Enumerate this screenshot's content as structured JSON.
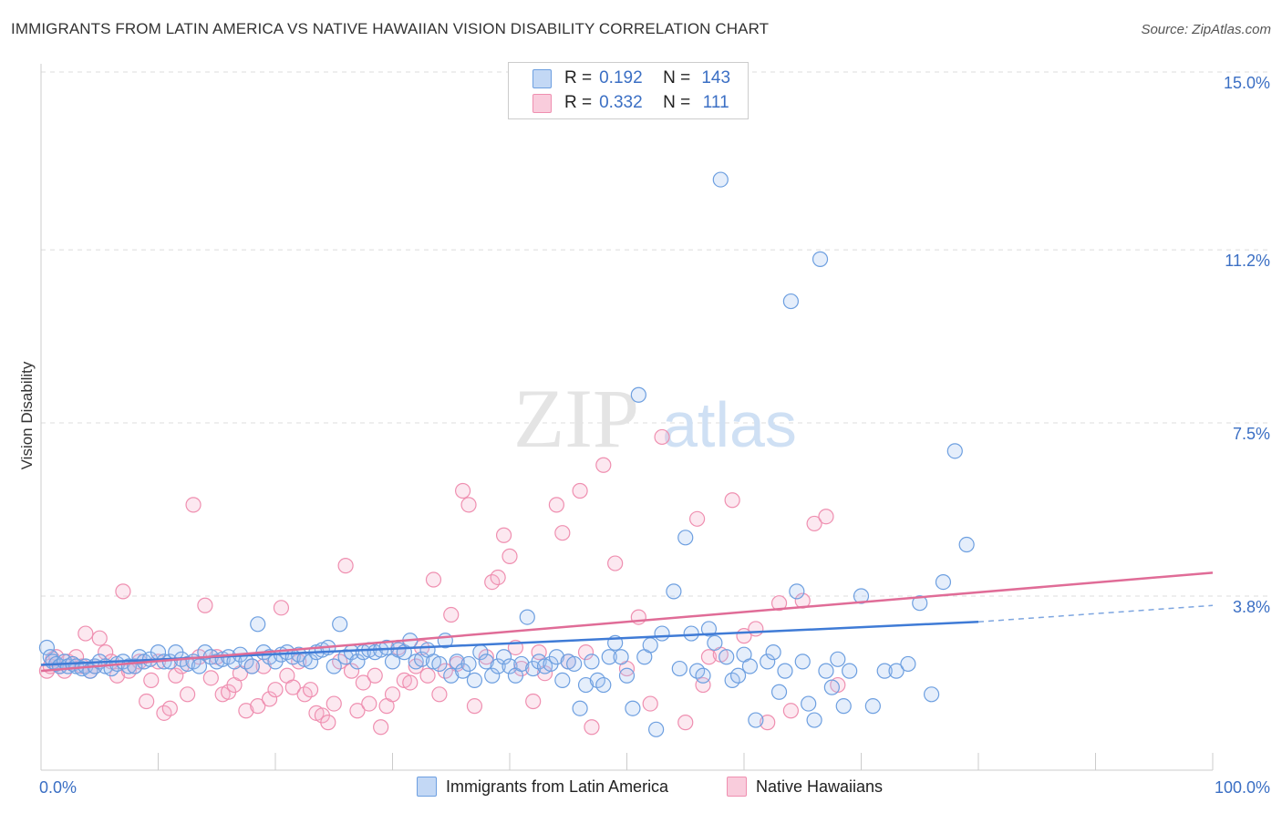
{
  "title": "IMMIGRANTS FROM LATIN AMERICA VS NATIVE HAWAIIAN VISION DISABILITY CORRELATION CHART",
  "source": "Source: ZipAtlas.com",
  "watermark": {
    "zip": "ZIP",
    "atlas": "atlas"
  },
  "legend_top": {
    "rows": [
      {
        "r_label": "R =",
        "r_value": "0.192",
        "n_label": "N =",
        "n_value": "143",
        "color": "#6d9fe0"
      },
      {
        "r_label": "R =",
        "r_value": "0.332",
        "n_label": "N =",
        "n_value": "111",
        "color": "#ef8fb0"
      }
    ]
  },
  "legend_bottom": [
    {
      "label": "Immigrants from Latin America",
      "color": "#6d9fe0"
    },
    {
      "label": "Native Hawaiians",
      "color": "#ef8fb0"
    }
  ],
  "chart_data": {
    "type": "scatter",
    "title": "IMMIGRANTS FROM LATIN AMERICA VS NATIVE HAWAIIAN VISION DISABILITY CORRELATION CHART",
    "xlabel": "",
    "ylabel": "Vision Disability",
    "x_ticks": [
      "0.0%",
      "100.0%"
    ],
    "y_ticks": [
      "3.8%",
      "7.5%",
      "11.2%",
      "15.0%"
    ],
    "y_tick_values": [
      3.8,
      7.5,
      11.2,
      15.0
    ],
    "xlim": [
      0,
      100
    ],
    "ylim": [
      0,
      15.4
    ],
    "grid": "horizontal dashed",
    "legend": "top-center",
    "series": [
      {
        "name": "Immigrants from Latin America",
        "color": "#6d9fe0",
        "r": 0.192,
        "n": 143,
        "trend": {
          "x": [
            0,
            80
          ],
          "y": [
            2.33,
            3.25
          ],
          "dashed_to": [
            100,
            3.6
          ]
        },
        "points": [
          [
            0.5,
            2.7
          ],
          [
            0.8,
            2.5
          ],
          [
            1,
            2.4
          ],
          [
            1.3,
            2.35
          ],
          [
            1.6,
            2.3
          ],
          [
            2,
            2.4
          ],
          [
            2.3,
            2.3
          ],
          [
            2.7,
            2.35
          ],
          [
            3,
            2.3
          ],
          [
            3.5,
            2.25
          ],
          [
            3.8,
            2.3
          ],
          [
            4.2,
            2.2
          ],
          [
            4.6,
            2.3
          ],
          [
            5,
            2.4
          ],
          [
            5.5,
            2.3
          ],
          [
            6,
            2.25
          ],
          [
            6.5,
            2.35
          ],
          [
            7,
            2.4
          ],
          [
            7.5,
            2.3
          ],
          [
            8,
            2.3
          ],
          [
            8.4,
            2.5
          ],
          [
            8.8,
            2.4
          ],
          [
            9.3,
            2.45
          ],
          [
            10,
            2.6
          ],
          [
            10.5,
            2.4
          ],
          [
            11,
            2.4
          ],
          [
            11.5,
            2.6
          ],
          [
            12,
            2.45
          ],
          [
            12.5,
            2.35
          ],
          [
            13,
            2.4
          ],
          [
            13.5,
            2.3
          ],
          [
            14,
            2.6
          ],
          [
            14.5,
            2.5
          ],
          [
            15,
            2.4
          ],
          [
            15.5,
            2.45
          ],
          [
            16,
            2.5
          ],
          [
            16.5,
            2.4
          ],
          [
            17,
            2.55
          ],
          [
            17.5,
            2.4
          ],
          [
            18,
            2.3
          ],
          [
            18.5,
            3.2
          ],
          [
            19,
            2.6
          ],
          [
            19.5,
            2.5
          ],
          [
            20,
            2.4
          ],
          [
            20.5,
            2.55
          ],
          [
            21,
            2.6
          ],
          [
            21.5,
            2.5
          ],
          [
            22,
            2.55
          ],
          [
            22.5,
            2.45
          ],
          [
            23,
            2.4
          ],
          [
            23.5,
            2.6
          ],
          [
            24,
            2.65
          ],
          [
            24.5,
            2.7
          ],
          [
            25,
            2.3
          ],
          [
            25.5,
            3.2
          ],
          [
            26,
            2.5
          ],
          [
            26.5,
            2.6
          ],
          [
            27,
            2.4
          ],
          [
            27.5,
            2.6
          ],
          [
            28,
            2.65
          ],
          [
            28.5,
            2.6
          ],
          [
            29,
            2.65
          ],
          [
            29.5,
            2.7
          ],
          [
            30,
            2.4
          ],
          [
            30.5,
            2.65
          ],
          [
            31,
            2.6
          ],
          [
            31.5,
            2.85
          ],
          [
            32,
            2.4
          ],
          [
            32.5,
            2.45
          ],
          [
            33,
            2.65
          ],
          [
            33.5,
            2.4
          ],
          [
            34,
            2.35
          ],
          [
            34.5,
            2.85
          ],
          [
            35,
            2.1
          ],
          [
            35.5,
            2.4
          ],
          [
            36,
            2.2
          ],
          [
            36.5,
            2.35
          ],
          [
            37,
            2.0
          ],
          [
            37.5,
            2.6
          ],
          [
            38,
            2.4
          ],
          [
            38.5,
            2.1
          ],
          [
            39,
            2.3
          ],
          [
            39.5,
            2.5
          ],
          [
            40,
            2.3
          ],
          [
            40.5,
            2.1
          ],
          [
            41,
            2.35
          ],
          [
            41.5,
            3.35
          ],
          [
            42,
            2.25
          ],
          [
            42.5,
            2.4
          ],
          [
            43,
            2.3
          ],
          [
            43.5,
            2.35
          ],
          [
            44,
            2.5
          ],
          [
            44.5,
            2.0
          ],
          [
            45,
            2.4
          ],
          [
            45.5,
            2.35
          ],
          [
            46,
            1.4
          ],
          [
            46.5,
            1.9
          ],
          [
            47,
            2.4
          ],
          [
            47.5,
            2.0
          ],
          [
            48,
            1.9
          ],
          [
            48.5,
            2.5
          ],
          [
            49,
            2.8
          ],
          [
            49.5,
            2.5
          ],
          [
            50,
            2.1
          ],
          [
            50.5,
            1.4
          ],
          [
            51,
            8.1
          ],
          [
            51.5,
            2.5
          ],
          [
            52,
            2.75
          ],
          [
            52.5,
            0.95
          ],
          [
            53,
            3.0
          ],
          [
            54,
            3.9
          ],
          [
            54.5,
            2.25
          ],
          [
            55,
            5.05
          ],
          [
            55.5,
            3.0
          ],
          [
            56,
            2.2
          ],
          [
            56.5,
            2.1
          ],
          [
            57,
            3.1
          ],
          [
            57.5,
            2.8
          ],
          [
            58,
            12.7
          ],
          [
            58.5,
            2.5
          ],
          [
            59,
            2.0
          ],
          [
            59.5,
            2.1
          ],
          [
            60,
            2.55
          ],
          [
            60.5,
            2.3
          ],
          [
            61,
            1.15
          ],
          [
            62,
            2.4
          ],
          [
            62.5,
            2.6
          ],
          [
            63,
            1.75
          ],
          [
            63.5,
            2.2
          ],
          [
            64,
            10.1
          ],
          [
            64.5,
            3.9
          ],
          [
            65,
            2.4
          ],
          [
            65.5,
            1.5
          ],
          [
            66,
            1.15
          ],
          [
            66.5,
            11.0
          ],
          [
            67,
            2.2
          ],
          [
            67.5,
            1.85
          ],
          [
            68,
            2.45
          ],
          [
            68.5,
            1.45
          ],
          [
            69,
            2.2
          ],
          [
            70,
            3.8
          ],
          [
            71,
            1.45
          ],
          [
            72,
            2.2
          ],
          [
            73,
            2.2
          ],
          [
            74,
            2.35
          ],
          [
            75,
            3.65
          ],
          [
            76,
            1.7
          ],
          [
            77,
            4.1
          ],
          [
            78,
            6.9
          ],
          [
            79,
            4.9
          ]
        ]
      },
      {
        "name": "Native Hawaiians",
        "color": "#ef8fb0",
        "r": 0.332,
        "n": 111,
        "trend": {
          "x": [
            0,
            100
          ],
          "y": [
            2.2,
            4.3
          ]
        },
        "points": [
          [
            0.5,
            2.2
          ],
          [
            0.8,
            2.3
          ],
          [
            1,
            2.45
          ],
          [
            1.3,
            2.5
          ],
          [
            1.6,
            2.3
          ],
          [
            2,
            2.2
          ],
          [
            2.3,
            2.4
          ],
          [
            2.7,
            2.35
          ],
          [
            3,
            2.5
          ],
          [
            3.5,
            2.3
          ],
          [
            3.8,
            3.0
          ],
          [
            4.2,
            2.2
          ],
          [
            4.6,
            2.3
          ],
          [
            5,
            2.9
          ],
          [
            5.5,
            2.6
          ],
          [
            6,
            2.4
          ],
          [
            6.5,
            2.1
          ],
          [
            7,
            3.9
          ],
          [
            7.5,
            2.2
          ],
          [
            8,
            2.3
          ],
          [
            8.4,
            2.4
          ],
          [
            9,
            1.55
          ],
          [
            9.4,
            2.0
          ],
          [
            10,
            2.4
          ],
          [
            10.5,
            1.3
          ],
          [
            11,
            1.4
          ],
          [
            11.5,
            2.1
          ],
          [
            12,
            2.3
          ],
          [
            12.5,
            1.7
          ],
          [
            13,
            5.75
          ],
          [
            13.5,
            2.5
          ],
          [
            14,
            3.6
          ],
          [
            14.5,
            2.05
          ],
          [
            15,
            2.5
          ],
          [
            15.5,
            1.7
          ],
          [
            16,
            1.75
          ],
          [
            16.5,
            1.9
          ],
          [
            17,
            2.15
          ],
          [
            17.5,
            1.35
          ],
          [
            18,
            2.3
          ],
          [
            18.5,
            1.45
          ],
          [
            19,
            2.3
          ],
          [
            19.5,
            1.6
          ],
          [
            20,
            1.8
          ],
          [
            20.5,
            3.55
          ],
          [
            21,
            2.1
          ],
          [
            21.5,
            1.85
          ],
          [
            22,
            2.4
          ],
          [
            22.5,
            1.7
          ],
          [
            23,
            1.8
          ],
          [
            23.5,
            1.3
          ],
          [
            24,
            1.25
          ],
          [
            24.5,
            1.1
          ],
          [
            25,
            1.5
          ],
          [
            25.5,
            2.4
          ],
          [
            26,
            4.45
          ],
          [
            26.5,
            2.2
          ],
          [
            27,
            1.35
          ],
          [
            27.5,
            1.95
          ],
          [
            28,
            1.5
          ],
          [
            28.5,
            2.1
          ],
          [
            29,
            1.0
          ],
          [
            29.5,
            1.45
          ],
          [
            30,
            1.7
          ],
          [
            30.5,
            2.7
          ],
          [
            31,
            2.0
          ],
          [
            31.5,
            1.95
          ],
          [
            32,
            2.3
          ],
          [
            32.5,
            2.7
          ],
          [
            33,
            2.1
          ],
          [
            33.5,
            4.15
          ],
          [
            34,
            1.7
          ],
          [
            34.5,
            2.2
          ],
          [
            35,
            3.4
          ],
          [
            35.5,
            2.35
          ],
          [
            36,
            6.05
          ],
          [
            36.5,
            5.75
          ],
          [
            37,
            1.45
          ],
          [
            38,
            2.5
          ],
          [
            38.5,
            4.1
          ],
          [
            39,
            4.2
          ],
          [
            39.5,
            5.1
          ],
          [
            40,
            4.65
          ],
          [
            40.5,
            2.7
          ],
          [
            41,
            2.25
          ],
          [
            42,
            1.55
          ],
          [
            42.5,
            2.6
          ],
          [
            43,
            2.15
          ],
          [
            44,
            5.75
          ],
          [
            44.5,
            5.15
          ],
          [
            45,
            2.4
          ],
          [
            46,
            6.05
          ],
          [
            46.5,
            2.6
          ],
          [
            47,
            1.0
          ],
          [
            48,
            6.6
          ],
          [
            49,
            4.5
          ],
          [
            50,
            2.25
          ],
          [
            51,
            3.35
          ],
          [
            52,
            1.5
          ],
          [
            53,
            7.2
          ],
          [
            55,
            1.1
          ],
          [
            56,
            5.45
          ],
          [
            56.5,
            1.9
          ],
          [
            57,
            2.5
          ],
          [
            58,
            2.55
          ],
          [
            59,
            5.85
          ],
          [
            60,
            2.95
          ],
          [
            61,
            3.1
          ],
          [
            62,
            1.1
          ],
          [
            63,
            3.65
          ],
          [
            64,
            1.35
          ],
          [
            65,
            3.7
          ],
          [
            66,
            5.35
          ],
          [
            67,
            5.5
          ],
          [
            68,
            1.9
          ]
        ]
      }
    ]
  }
}
